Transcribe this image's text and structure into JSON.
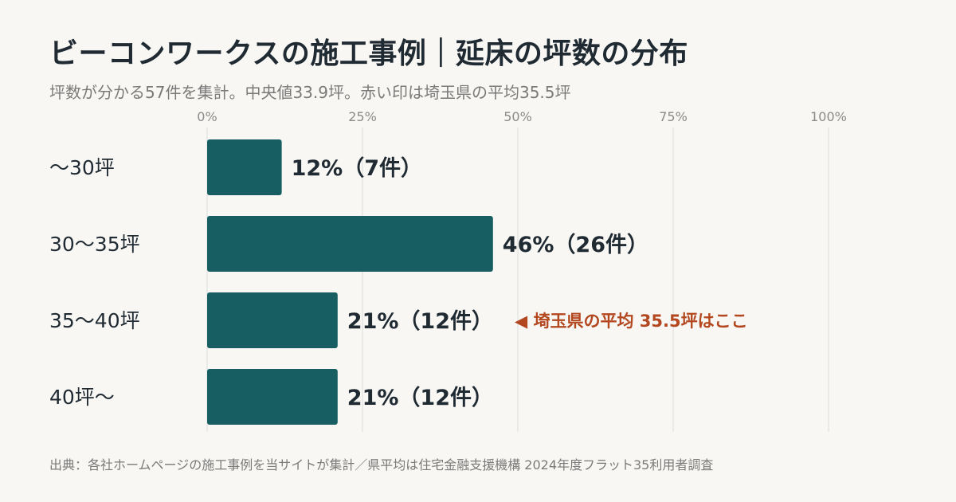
{
  "title": "ビーコンワークスの施工事例｜延床の坪数の分布",
  "subtitle": "坪数が分かる57件を集計。中央値33.9坪。赤い印は埼玉県の平均35.5坪",
  "footer": "出典：各社ホームページの施工事例を当サイトが集計／県平均は住宅金融支援機構 2024年度フラット35利用者調査",
  "colors": {
    "bar": "#175e62",
    "grid": "#dddddd",
    "annotation": "#b3471f",
    "label": "#1f2a33",
    "tick": "#8a8a8a"
  },
  "chart_data": {
    "type": "bar",
    "orientation": "horizontal",
    "categories": [
      "〜30坪",
      "30〜35坪",
      "35〜40坪",
      "40坪〜"
    ],
    "values": [
      12,
      46,
      21,
      21
    ],
    "counts": [
      7,
      26,
      12,
      12
    ],
    "value_labels": [
      "12%（7件）",
      "46%（26件）",
      "21%（12件）",
      "21%（12件）"
    ],
    "xlim": [
      0,
      100
    ],
    "xticks": [
      0,
      25,
      50,
      75,
      100
    ],
    "xtick_labels": [
      "0%",
      "25%",
      "50%",
      "75%",
      "100%"
    ],
    "grid": true,
    "annotation": {
      "category_index": 2,
      "text": "◀ 埼玉県の平均 35.5坪はここ"
    }
  }
}
